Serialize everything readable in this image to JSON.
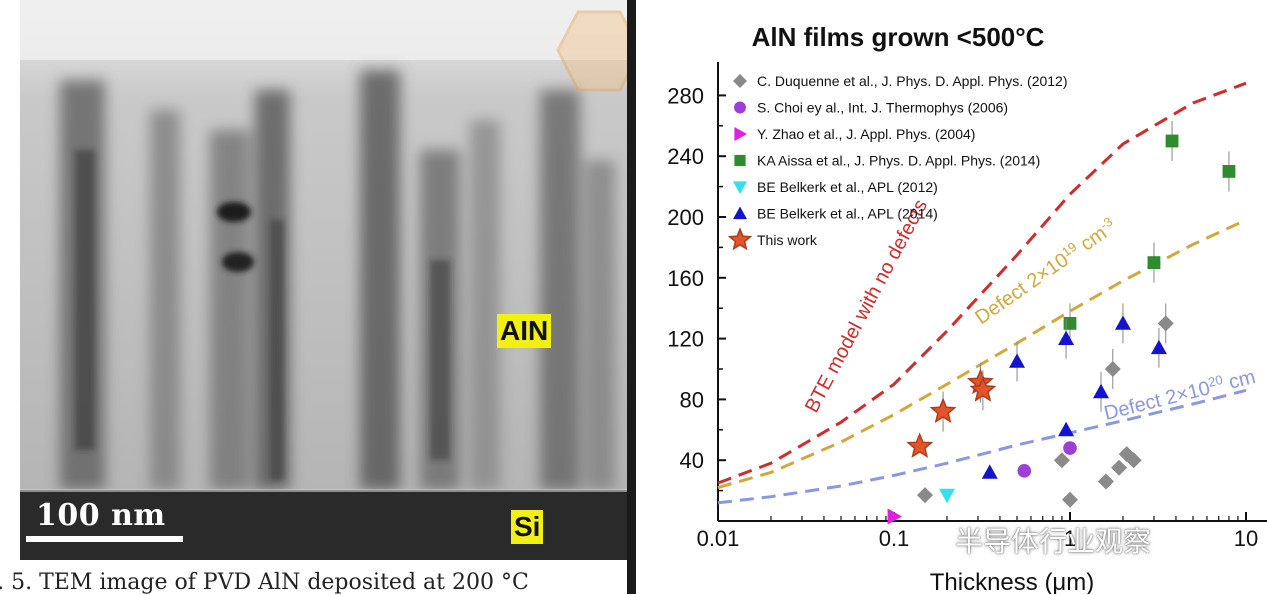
{
  "tem": {
    "label_aln": "AIN",
    "label_si": "Si",
    "scale_bar_text": "100 nm",
    "caption": "ig. 5. TEM image of PVD AlN deposited at 200 °C"
  },
  "watermark": {
    "text": "半导体行业观察",
    "icon": "wechat-icon"
  },
  "chart_data": {
    "type": "scatter",
    "title": "AlN films grown <500°C",
    "xlabel": "Thickness (μm)",
    "ylabel": "",
    "x_scale": "log",
    "xlim": [
      0.01,
      10
    ],
    "ylim": [
      0,
      300
    ],
    "x_ticks": [
      0.01,
      0.1,
      1,
      10
    ],
    "x_tick_labels": [
      "0.01",
      "0.1",
      "1",
      "10"
    ],
    "y_ticks": [
      40,
      80,
      120,
      160,
      200,
      240,
      280
    ],
    "y_tick_labels": [
      "40",
      "80",
      "120",
      "160",
      "200",
      "240",
      "280"
    ],
    "legend_position": "top-left",
    "series": [
      {
        "name": "C. Duquenne et al., J. Phys. D. Appl. Phys. (2012)",
        "marker": "diamond",
        "color": "#8a8a8a",
        "x": [
          0.15,
          0.9,
          1.0,
          1.6,
          1.75,
          1.9,
          2.1,
          2.3,
          3.5
        ],
        "y": [
          17,
          40,
          14,
          26,
          100,
          35,
          44,
          40,
          130
        ]
      },
      {
        "name": "S. Choi ey al., Int. J. Thermophys (2006)",
        "marker": "circle",
        "color": "#9b3fd6",
        "x": [
          0.55,
          1.0
        ],
        "y": [
          33,
          48
        ]
      },
      {
        "name": "Y. Zhao et al., J. Appl. Phys. (2004)",
        "marker": "triangle-right",
        "color": "#e020e0",
        "x": [
          0.1
        ],
        "y": [
          3
        ]
      },
      {
        "name": "KA Aissa et al., J. Phys. D. Appl. Phys. (2014)",
        "marker": "square",
        "color": "#2e8b2e",
        "x": [
          1.0,
          3.0,
          3.8,
          8.0
        ],
        "y": [
          130,
          170,
          250,
          230
        ]
      },
      {
        "name": "BE Belkerk et al., APL (2012)",
        "marker": "triangle-down",
        "color": "#33e0ee",
        "x": [
          0.2
        ],
        "y": [
          17
        ]
      },
      {
        "name": "BE Belkerk et al., APL (2014)",
        "marker": "triangle-up",
        "color": "#1414d0",
        "x": [
          0.35,
          0.5,
          0.95,
          0.95,
          1.5,
          2.0,
          3.2
        ],
        "y": [
          32,
          105,
          60,
          120,
          85,
          130,
          114
        ]
      },
      {
        "name": "This work",
        "marker": "star",
        "color": "#e2542a",
        "x": [
          0.14,
          0.19,
          0.31,
          0.32
        ],
        "y": [
          49,
          72,
          91,
          86
        ]
      }
    ],
    "curves": [
      {
        "label": "BTE model with no defects",
        "color": "#d42a2a",
        "x": [
          0.01,
          0.02,
          0.05,
          0.1,
          0.2,
          0.5,
          1,
          2,
          5,
          10
        ],
        "y": [
          25,
          38,
          65,
          90,
          125,
          175,
          215,
          248,
          275,
          288
        ]
      },
      {
        "label": "Defect 2×10¹⁹ cm⁻³",
        "color": "#d4a73a",
        "x": [
          0.01,
          0.02,
          0.05,
          0.1,
          0.2,
          0.5,
          1,
          2,
          5,
          10
        ],
        "y": [
          22,
          32,
          52,
          70,
          90,
          117,
          138,
          158,
          182,
          198
        ]
      },
      {
        "label": "Defect 2×10²⁰ cm",
        "color": "#8c96e6",
        "x": [
          0.01,
          0.02,
          0.05,
          0.1,
          0.2,
          0.5,
          1,
          2,
          5,
          10
        ],
        "y": [
          12,
          16,
          23,
          30,
          38,
          50,
          58,
          66,
          77,
          86
        ]
      }
    ],
    "curve_labels": [
      {
        "pre": "BTE model with no defects",
        "sup": "",
        "post": ""
      },
      {
        "pre": "Defect 2×10",
        "sup": "19",
        "post": " cm",
        "sup2": "-3"
      },
      {
        "pre": "Defect 2×10",
        "sup": "20",
        "post": " cm",
        "sup2": ""
      }
    ]
  }
}
